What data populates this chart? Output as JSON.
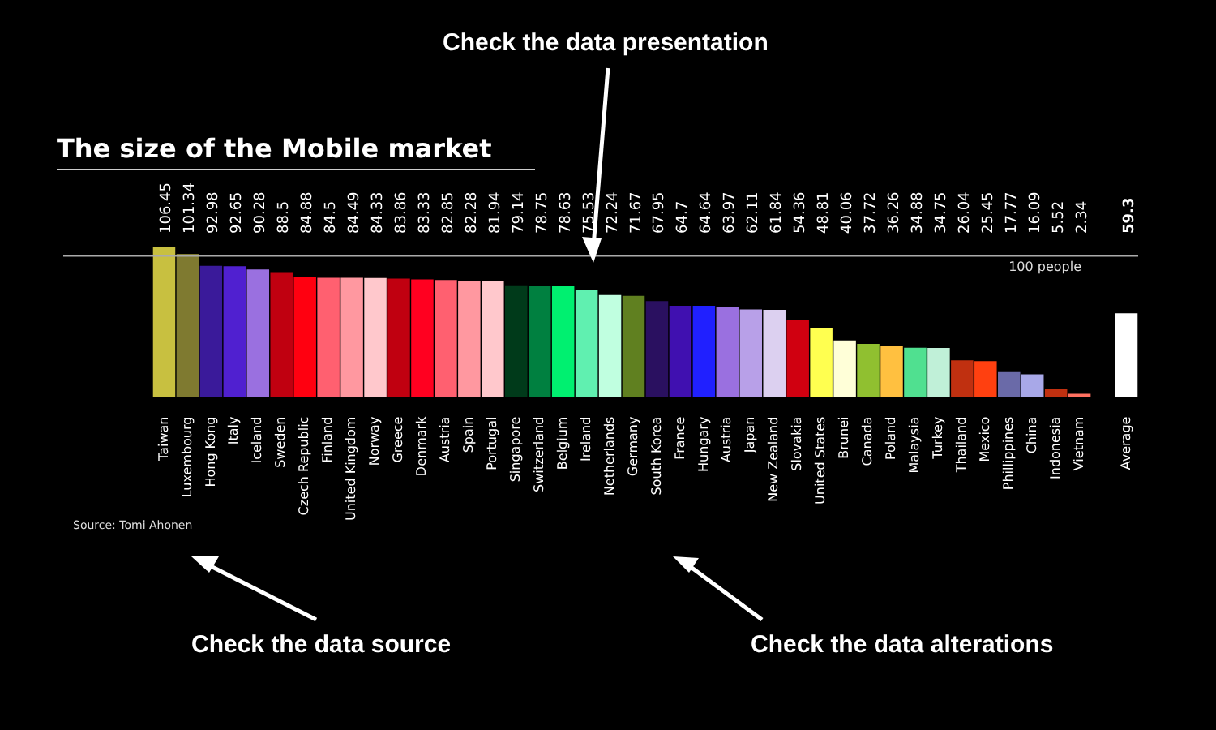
{
  "chart_data": {
    "type": "bar",
    "title": "The size of the Mobile market",
    "categories": [
      "Taiwan",
      "Luxembourg",
      "Hong Kong",
      "Italy",
      "Iceland",
      "Sweden",
      "Czech Republic",
      "Finland",
      "United Kingdom",
      "Norway",
      "Greece",
      "Denmark",
      "Austria",
      "Spain",
      "Portugal",
      "Singapore",
      "Switzerland",
      "Belgium",
      "Ireland",
      "Netherlands",
      "Germany",
      "South Korea",
      "France",
      "Hungary",
      "Austria",
      "Japan",
      "New Zealand",
      "Slovakia",
      "United States",
      "Brunei",
      "Canada",
      "Poland",
      "Malaysia",
      "Turkey",
      "Thailand",
      "Mexico",
      "Phillippines",
      "China",
      "Indonesia",
      "Vietnam",
      null,
      "Average"
    ],
    "values": [
      106.45,
      101.34,
      92.98,
      92.65,
      90.28,
      88.5,
      84.88,
      84.5,
      84.49,
      84.33,
      83.86,
      83.33,
      82.85,
      82.28,
      81.94,
      79.14,
      78.75,
      78.63,
      75.53,
      72.24,
      71.67,
      67.95,
      64.7,
      64.64,
      63.97,
      62.11,
      61.84,
      54.36,
      48.81,
      40.06,
      37.72,
      36.26,
      34.88,
      34.75,
      26.04,
      25.45,
      17.77,
      16.09,
      5.52,
      2.34,
      null,
      59.3
    ],
    "colors": [
      "#c8c040",
      "#7f7a30",
      "#3a1a9a",
      "#5020d0",
      "#9a70e0",
      "#c00010",
      "#ff0010",
      "#ff6070",
      "#ff98a0",
      "#ffc8cc",
      "#c00010",
      "#ff0020",
      "#ff6070",
      "#ff98a0",
      "#ffc8cc",
      "#003a1a",
      "#008040",
      "#00f070",
      "#60f0b0",
      "#c0ffe0",
      "#608020",
      "#2a1060",
      "#4010b0",
      "#2020ff",
      "#9a70e0",
      "#b8a0e8",
      "#dcd0f0",
      "#d00010",
      "#ffff50",
      "#ffffd8",
      "#90c030",
      "#ffc040",
      "#50e090",
      "#c0f0d8",
      "#c03010",
      "#ff4010",
      "#6a6aa8",
      "#a8a8e8",
      "#c03010",
      "#ff7060",
      "#000000",
      "#ffffff"
    ],
    "ylim": [
      0,
      110
    ],
    "data_labels": true,
    "tick_labels": "x",
    "grid": false,
    "legend": false,
    "ref_lines": [
      {
        "axis": "y",
        "value": 100,
        "label": "100 people",
        "color": "#aaaaaa"
      }
    ],
    "annotations": [
      "Check the data presentation",
      "Check the data source",
      "Check the data alterations",
      "Source: Tomi Ahonen"
    ]
  }
}
